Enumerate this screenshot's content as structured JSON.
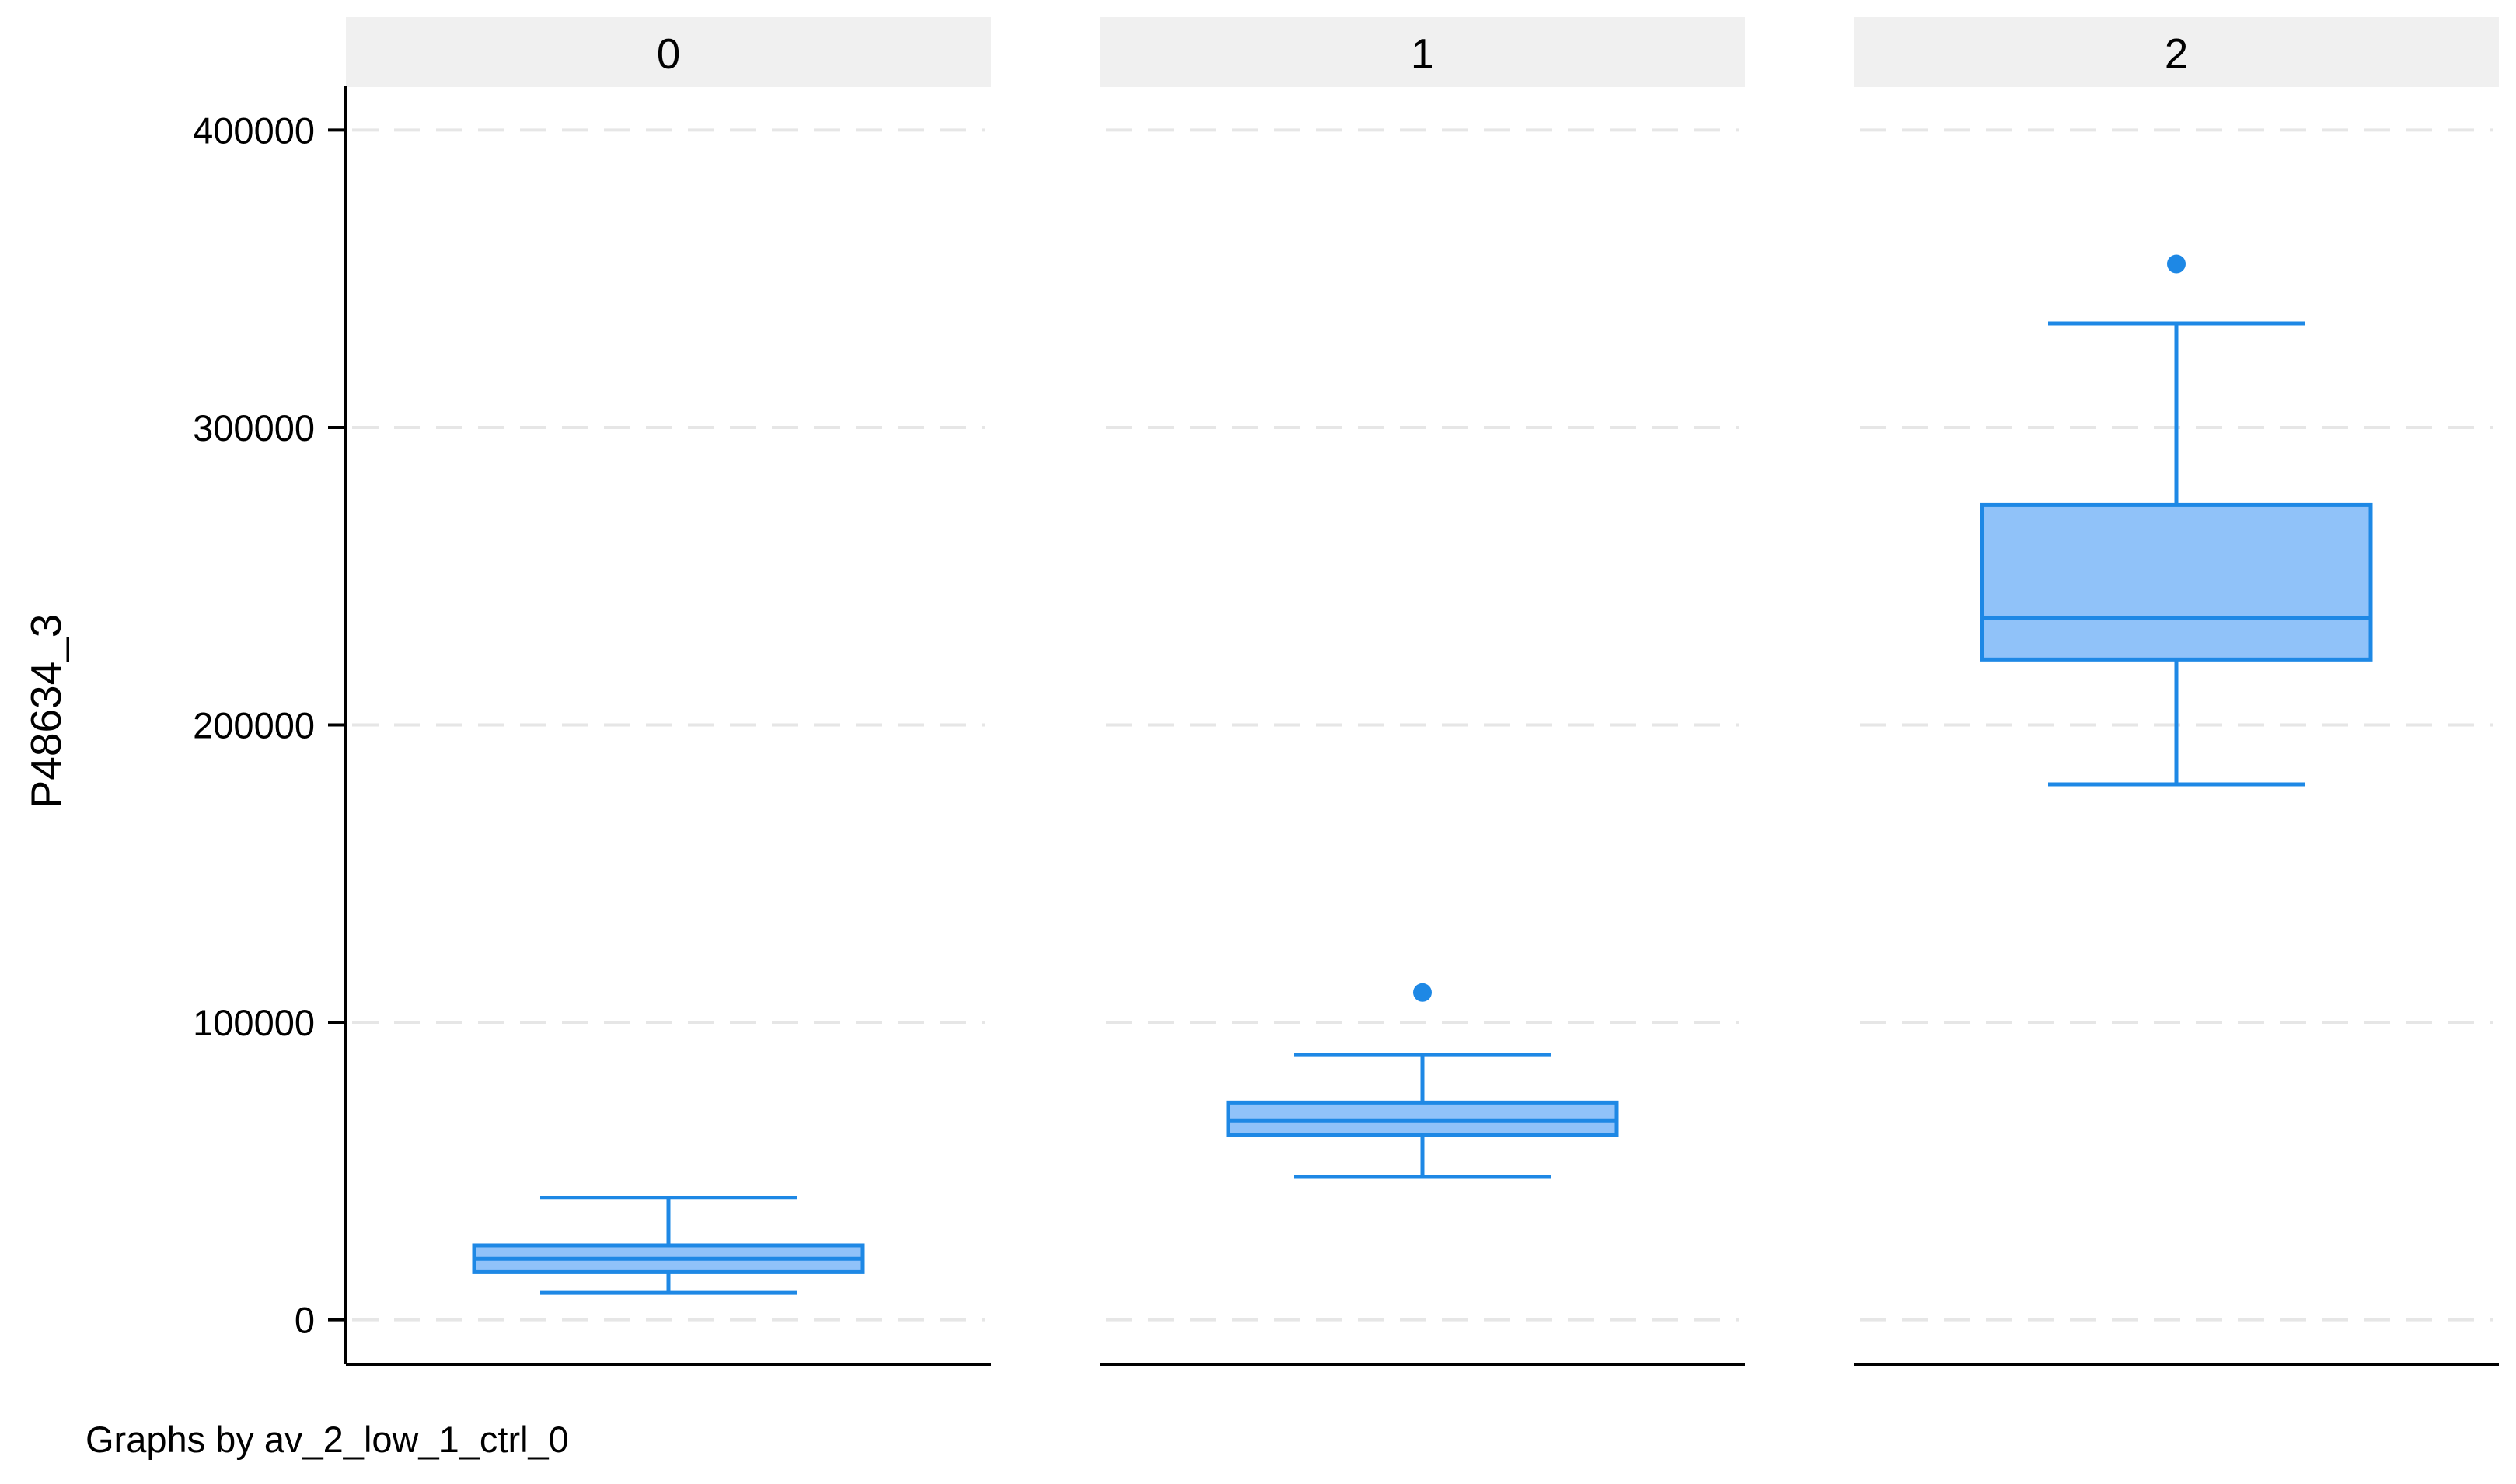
{
  "chart_data": {
    "type": "box",
    "ylabel": "P48634_3",
    "ylim": [
      -15000,
      415000
    ],
    "yticks": [
      0,
      100000,
      200000,
      300000,
      400000
    ],
    "ytick_labels": [
      "0",
      "100000",
      "200000",
      "300000",
      "400000"
    ],
    "grid": true,
    "note": "Graphs by av_2_low_1_ctrl_0",
    "colors": {
      "box_fill": "#90c2f9",
      "box_line": "#1e88e5",
      "strip": "#f0f0f0",
      "grid": "#e6e6e6"
    },
    "panels": [
      {
        "label": "0",
        "whisker_low": 9000,
        "q1": 16000,
        "median": 20500,
        "q3": 25000,
        "whisker_high": 41000,
        "outliers": []
      },
      {
        "label": "1",
        "whisker_low": 48000,
        "q1": 62000,
        "median": 67000,
        "q3": 73000,
        "whisker_high": 89000,
        "outliers": [
          110000
        ]
      },
      {
        "label": "2",
        "whisker_low": 180000,
        "q1": 222000,
        "median": 236000,
        "q3": 274000,
        "whisker_high": 335000,
        "outliers": [
          355000
        ]
      }
    ]
  }
}
